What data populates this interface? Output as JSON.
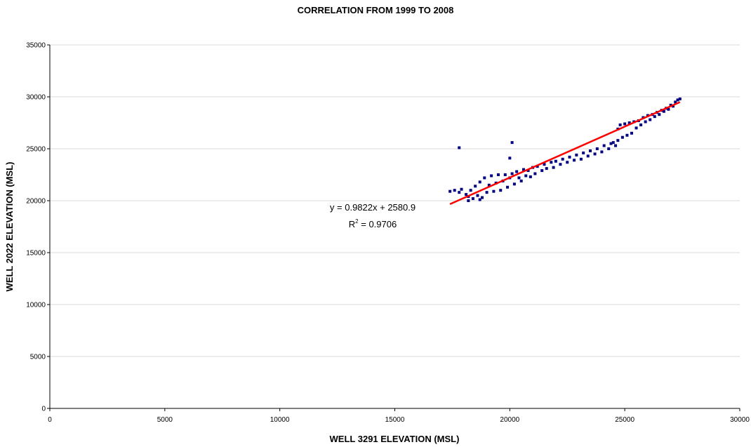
{
  "chart_data": {
    "type": "scatter",
    "title": "CORRELATION FROM 1999 TO 2008",
    "xlabel": "WELL 3291 ELEVATION (MSL)",
    "ylabel": "WELL 2022 ELEVATION (MSL)",
    "xlim": [
      0,
      30000
    ],
    "ylim": [
      0,
      35000
    ],
    "xticks": [
      0,
      5000,
      10000,
      15000,
      20000,
      25000,
      30000
    ],
    "yticks": [
      0,
      5000,
      10000,
      15000,
      20000,
      25000,
      30000,
      35000
    ],
    "xtick_labels": [
      "0",
      "5000",
      "10000",
      "15000",
      "20000",
      "25000",
      "30000"
    ],
    "ytick_labels": [
      "0",
      "5000",
      "10000",
      "15000",
      "20000",
      "25000",
      "30000",
      "35000"
    ],
    "grid": "horizontal",
    "legend": "none",
    "series": [
      {
        "marker_color": "#000080",
        "points": [
          [
            17400,
            20900
          ],
          [
            17600,
            21000
          ],
          [
            17800,
            20800
          ],
          [
            17900,
            21100
          ],
          [
            18100,
            20600
          ],
          [
            18200,
            20400
          ],
          [
            18300,
            21000
          ],
          [
            18400,
            20200
          ],
          [
            18500,
            21400
          ],
          [
            18600,
            20500
          ],
          [
            18700,
            21800
          ],
          [
            18800,
            20300
          ],
          [
            18900,
            22200
          ],
          [
            19000,
            20800
          ],
          [
            19100,
            21500
          ],
          [
            19200,
            22400
          ],
          [
            19300,
            20900
          ],
          [
            19400,
            21700
          ],
          [
            19500,
            22500
          ],
          [
            19600,
            21000
          ],
          [
            19700,
            21900
          ],
          [
            19800,
            22500
          ],
          [
            19900,
            21300
          ],
          [
            20000,
            22200
          ],
          [
            20100,
            22600
          ],
          [
            20200,
            21600
          ],
          [
            20300,
            22800
          ],
          [
            20400,
            22200
          ],
          [
            20500,
            21900
          ],
          [
            20600,
            23000
          ],
          [
            20700,
            22400
          ],
          [
            20800,
            22900
          ],
          [
            20900,
            22300
          ],
          [
            21000,
            23200
          ],
          [
            21100,
            22600
          ],
          [
            21200,
            23300
          ],
          [
            21400,
            22900
          ],
          [
            21500,
            23500
          ],
          [
            21600,
            23100
          ],
          [
            21800,
            23700
          ],
          [
            21900,
            23200
          ],
          [
            22000,
            23800
          ],
          [
            22200,
            23500
          ],
          [
            22300,
            24000
          ],
          [
            22500,
            23700
          ],
          [
            22600,
            24200
          ],
          [
            22800,
            23900
          ],
          [
            22900,
            24400
          ],
          [
            23100,
            24000
          ],
          [
            23200,
            24600
          ],
          [
            23400,
            24300
          ],
          [
            23500,
            24800
          ],
          [
            23700,
            24500
          ],
          [
            23800,
            25000
          ],
          [
            24000,
            24700
          ],
          [
            24100,
            25300
          ],
          [
            24300,
            25000
          ],
          [
            24400,
            25500
          ],
          [
            24600,
            25300
          ],
          [
            24700,
            25800
          ],
          [
            24500,
            25600
          ],
          [
            24700,
            26900
          ],
          [
            24800,
            27300
          ],
          [
            24900,
            26100
          ],
          [
            25000,
            27400
          ],
          [
            25100,
            26300
          ],
          [
            25200,
            27500
          ],
          [
            25300,
            26500
          ],
          [
            25400,
            27600
          ],
          [
            25500,
            27000
          ],
          [
            25600,
            27700
          ],
          [
            25700,
            27300
          ],
          [
            25800,
            28000
          ],
          [
            25900,
            27600
          ],
          [
            26000,
            28200
          ],
          [
            26100,
            27800
          ],
          [
            26200,
            28300
          ],
          [
            26300,
            28100
          ],
          [
            26400,
            28500
          ],
          [
            26500,
            28300
          ],
          [
            26600,
            28700
          ],
          [
            26700,
            28600
          ],
          [
            26800,
            28900
          ],
          [
            26900,
            28800
          ],
          [
            27000,
            29200
          ],
          [
            27100,
            29100
          ],
          [
            27200,
            29500
          ],
          [
            27300,
            29700
          ],
          [
            27400,
            29800
          ],
          [
            17800,
            25100
          ],
          [
            20100,
            25600
          ],
          [
            20000,
            24100
          ],
          [
            18200,
            20000
          ],
          [
            18700,
            20100
          ]
        ],
        "trendline": {
          "type": "linear",
          "slope": 0.9822,
          "intercept": 2580.9,
          "x_range": [
            17400,
            27400
          ],
          "color": "#ff0000"
        }
      }
    ],
    "annotations": {
      "equation": "y = 0.9822x + 2580.9",
      "r2_prefix": "R",
      "r2_exponent": "2",
      "r2_value": " = 0.9706"
    }
  }
}
